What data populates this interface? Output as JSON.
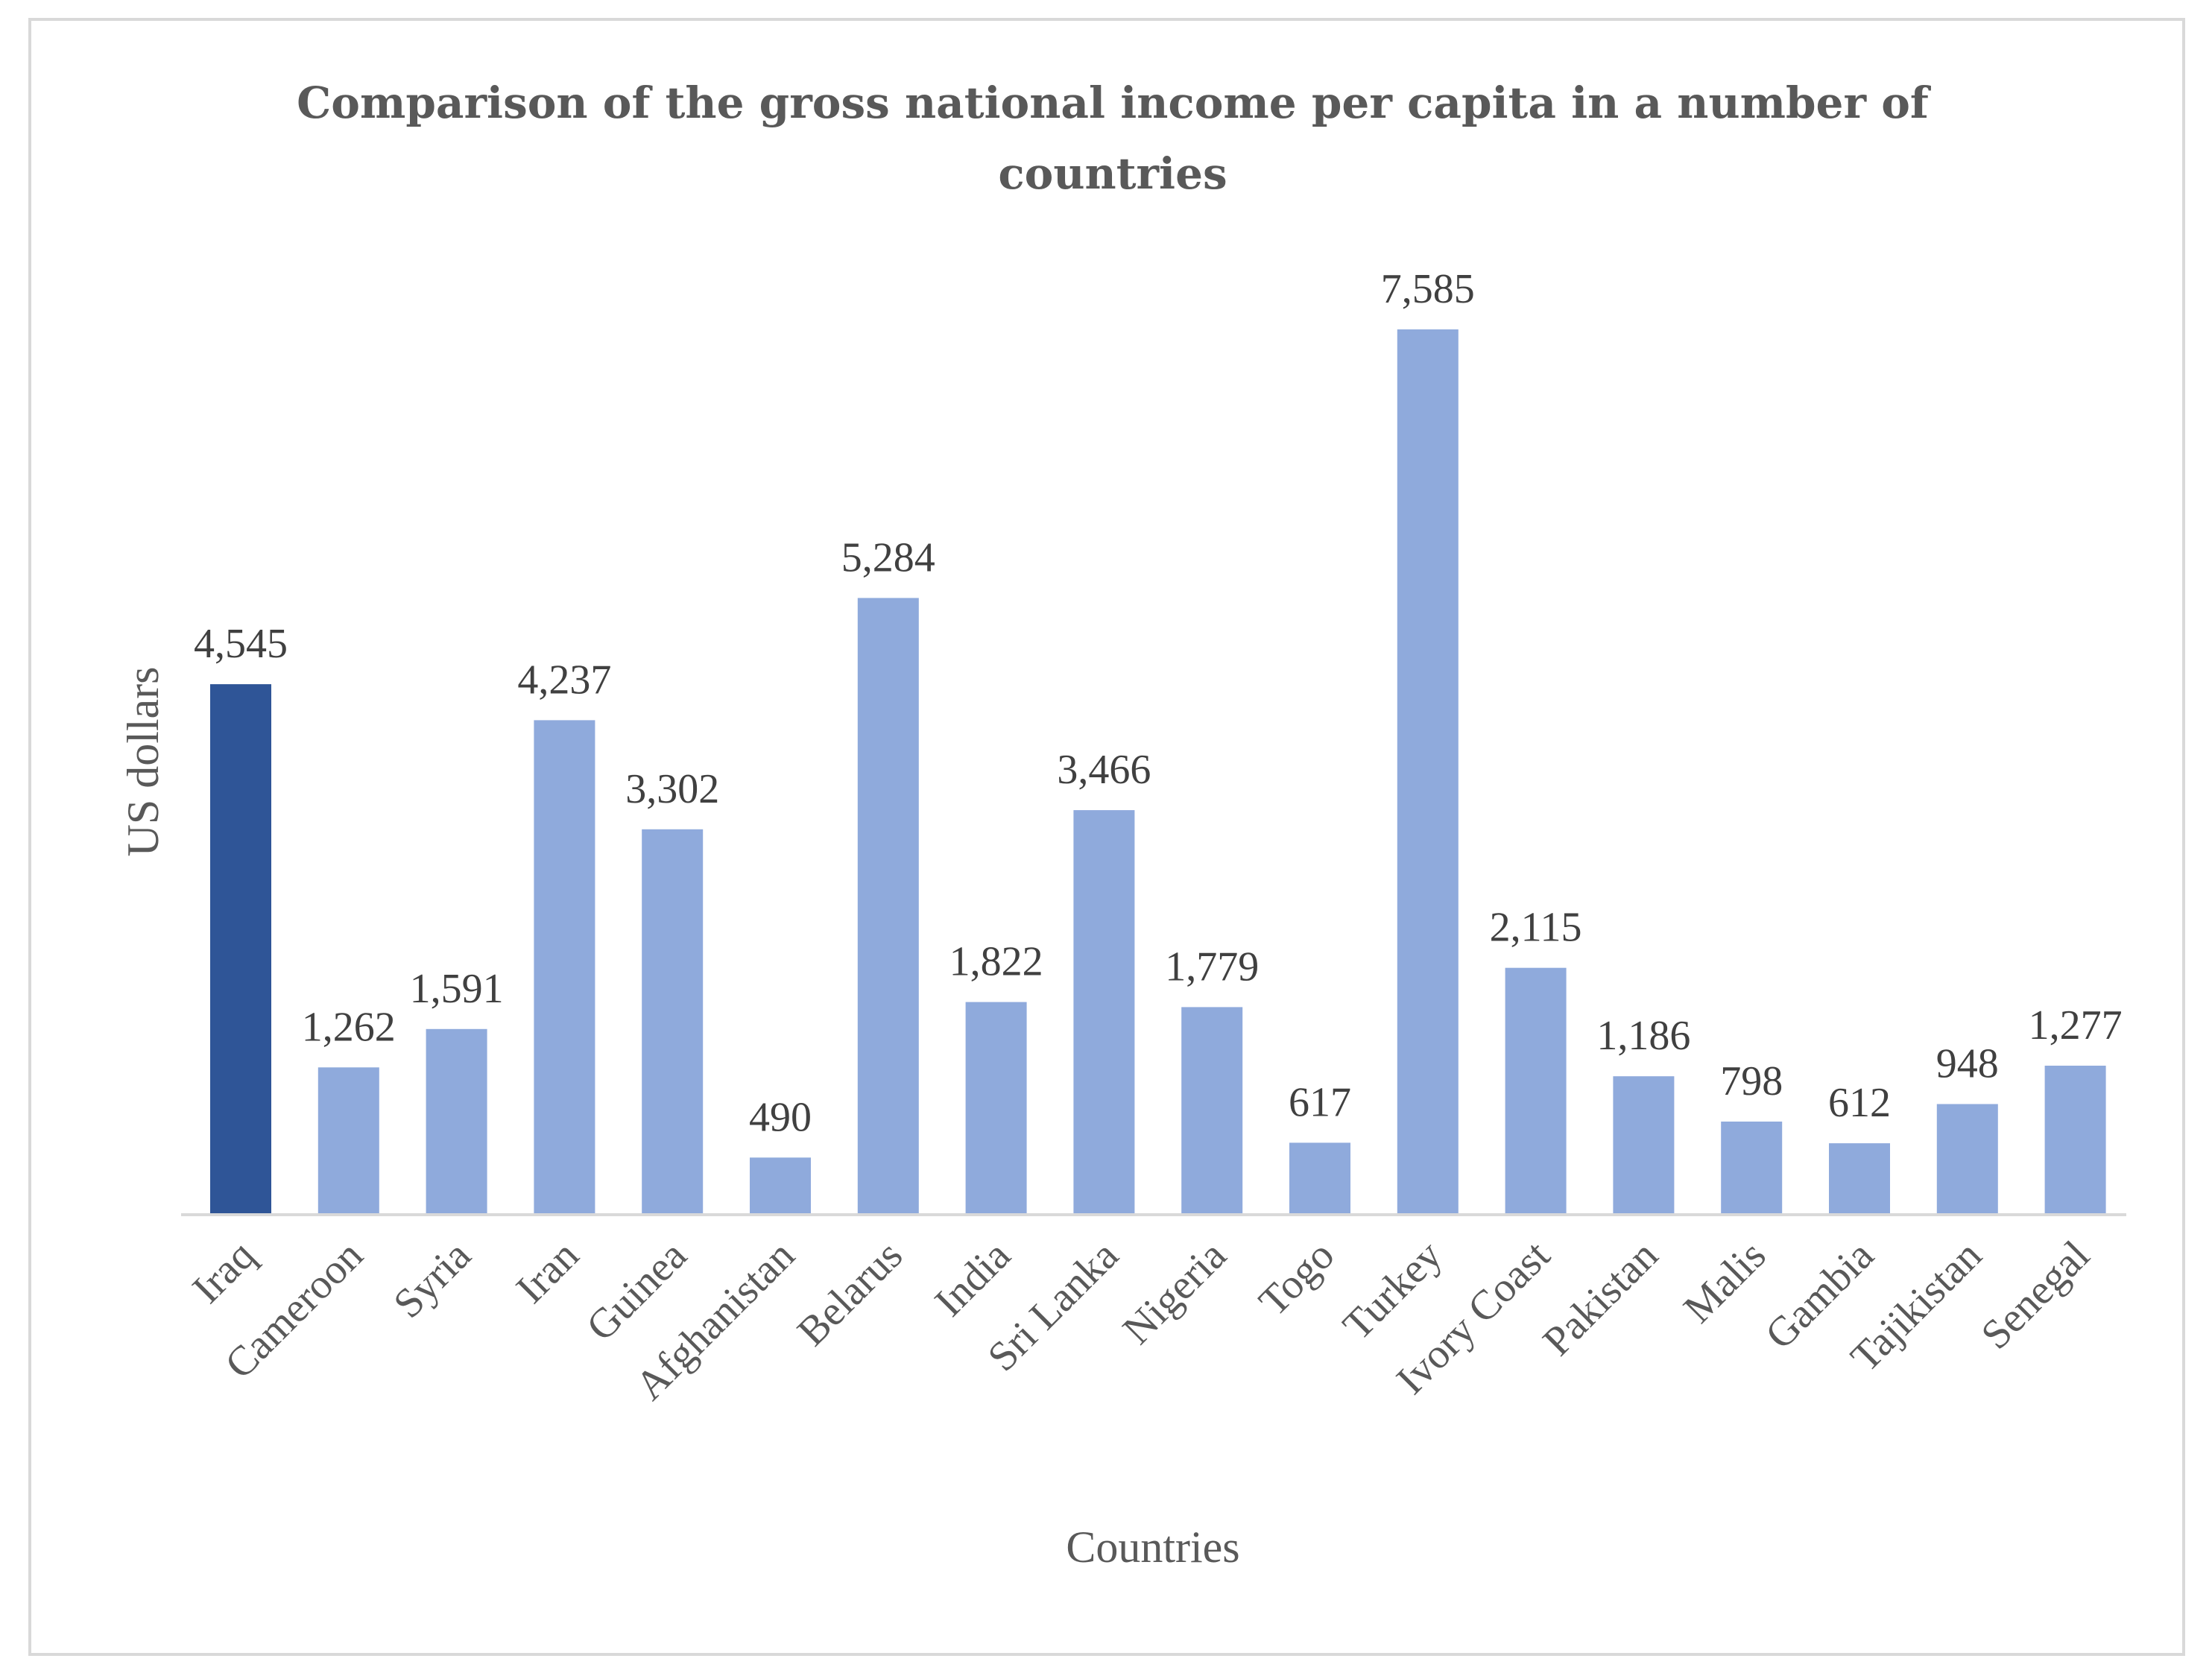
{
  "chart_data": {
    "type": "bar",
    "title_lines": [
      "Comparison of the gross national income per capita in a number of",
      "countries"
    ],
    "xlabel": "Countries",
    "ylabel": "US dollars",
    "ylim": [
      0,
      8000
    ],
    "grid": false,
    "legend": "none",
    "categories": [
      "Iraq",
      "Cameroon",
      "Syria",
      "Iran",
      "Guinea",
      "Afghanistan",
      "Belarus",
      "India",
      "Sri Lanka",
      "Nigeria",
      "Togo",
      "Turkey",
      "Ivory Coast",
      "Pakistan",
      "Malis",
      "Gambia",
      "Tajikistan",
      "Senegal"
    ],
    "values": [
      4545,
      1262,
      1591,
      4237,
      3302,
      490,
      5284,
      1822,
      3466,
      1779,
      617,
      7585,
      2115,
      1186,
      798,
      612,
      948,
      1277
    ],
    "value_labels": [
      "4,545",
      "1,262",
      "1,591",
      "4,237",
      "3,302",
      "490",
      "5,284",
      "1,822",
      "3,466",
      "1,779",
      "617",
      "7,585",
      "2,115",
      "1,186",
      "798",
      "612",
      "948",
      "1,277"
    ],
    "highlight_index": 0,
    "colors": {
      "highlight": "#2f5597",
      "bar": "#8faadc",
      "axis": "#d9d9d9",
      "text": "#595959",
      "label": "#404040"
    }
  }
}
